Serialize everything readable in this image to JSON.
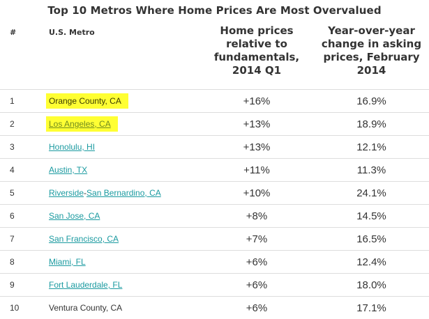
{
  "title": "Top 10 Metros Where Home Prices Are Most Overvalued",
  "columns": {
    "num": "#",
    "metro": "U.S. Metro",
    "relative": "Home prices relative to fundamentals, 2014 Q1",
    "yoy": "Year-over-year change in asking prices, February 2014"
  },
  "highlight_color": "#ffff33",
  "link_color": "#1a9aa0",
  "rows": [
    {
      "rank": "1",
      "segments": [
        {
          "text": "Orange County, CA",
          "link": false
        }
      ],
      "highlighted": true,
      "relative": "+16%",
      "yoy": "16.9%"
    },
    {
      "rank": "2",
      "segments": [
        {
          "text": "Los Angeles, CA",
          "link": true
        }
      ],
      "highlighted": true,
      "relative": "+13%",
      "yoy": "18.9%"
    },
    {
      "rank": "3",
      "segments": [
        {
          "text": "Honolulu, HI",
          "link": true
        }
      ],
      "highlighted": false,
      "relative": "+13%",
      "yoy": "12.1%"
    },
    {
      "rank": "4",
      "segments": [
        {
          "text": "Austin, TX",
          "link": true
        }
      ],
      "highlighted": false,
      "relative": "+11%",
      "yoy": "11.3%"
    },
    {
      "rank": "5",
      "segments": [
        {
          "text": "Riverside",
          "link": true
        },
        {
          "text": "-",
          "link": false
        },
        {
          "text": "San Bernardino, CA",
          "link": true
        }
      ],
      "highlighted": false,
      "relative": "+10%",
      "yoy": "24.1%"
    },
    {
      "rank": "6",
      "segments": [
        {
          "text": "San Jose, CA",
          "link": true
        }
      ],
      "highlighted": false,
      "relative": "+8%",
      "yoy": "14.5%"
    },
    {
      "rank": "7",
      "segments": [
        {
          "text": "San Francisco, CA",
          "link": true
        }
      ],
      "highlighted": false,
      "relative": "+7%",
      "yoy": "16.5%"
    },
    {
      "rank": "8",
      "segments": [
        {
          "text": "Miami, FL",
          "link": true
        }
      ],
      "highlighted": false,
      "relative": "+6%",
      "yoy": "12.4%"
    },
    {
      "rank": "9",
      "segments": [
        {
          "text": "Fort Lauderdale, FL",
          "link": true
        }
      ],
      "highlighted": false,
      "relative": "+6%",
      "yoy": "18.0%"
    },
    {
      "rank": "10",
      "segments": [
        {
          "text": "Ventura County, CA",
          "link": false
        }
      ],
      "highlighted": false,
      "relative": "+6%",
      "yoy": "17.1%"
    }
  ]
}
